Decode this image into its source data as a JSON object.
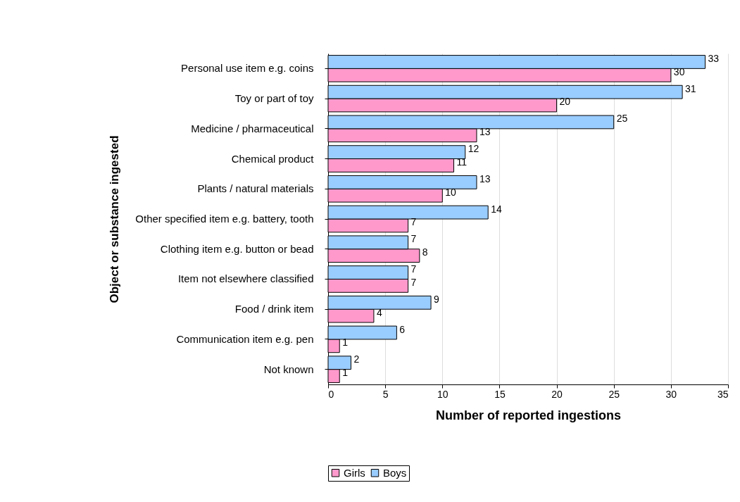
{
  "chart_data": {
    "type": "bar",
    "orientation": "horizontal",
    "xlabel": "Number of reported ingestions",
    "ylabel": "Object or substance ingested",
    "categories": [
      "Personal use item e.g. coins",
      "Toy or part of toy",
      "Medicine / pharmaceutical",
      "Chemical product",
      "Plants / natural materials",
      "Other specified item e.g. battery, tooth",
      "Clothing item e.g. button or bead",
      "Item not elsewhere classified",
      "Food / drink item",
      "Communication item e.g. pen",
      "Not known"
    ],
    "series": [
      {
        "name": "Girls",
        "color": "#ff99cc",
        "values": [
          30,
          20,
          13,
          11,
          10,
          7,
          8,
          7,
          4,
          1,
          1
        ]
      },
      {
        "name": "Boys",
        "color": "#99ccff",
        "values": [
          33,
          31,
          25,
          12,
          13,
          14,
          7,
          7,
          9,
          6,
          2
        ]
      }
    ],
    "xlim": [
      0,
      35
    ],
    "xticks": [
      0,
      5,
      10,
      15,
      20,
      25,
      30,
      35
    ],
    "grid": "x",
    "legend": "bottom",
    "data_labels": true
  }
}
